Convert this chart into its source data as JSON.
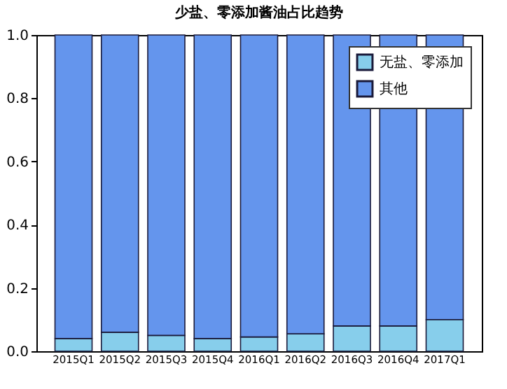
{
  "chart_data": {
    "type": "bar",
    "title": "少盐、零添加酱油占比趋势",
    "stacked": true,
    "categories": [
      "2015Q1",
      "2015Q2",
      "2015Q3",
      "2015Q4",
      "2016Q1",
      "2016Q2",
      "2016Q3",
      "2016Q4",
      "2017Q1"
    ],
    "series": [
      {
        "name": "无盐、零添加",
        "color": "#87ceeb",
        "values": [
          0.04,
          0.06,
          0.05,
          0.04,
          0.045,
          0.055,
          0.08,
          0.08,
          0.1
        ]
      },
      {
        "name": "其他",
        "color": "#6495ed",
        "values": [
          0.96,
          0.94,
          0.95,
          0.96,
          0.955,
          0.945,
          0.92,
          0.92,
          0.9
        ]
      }
    ],
    "ylim": [
      0,
      1
    ],
    "yticks": [
      {
        "value": 0,
        "label": "0.0"
      },
      {
        "value": 0.2,
        "label": "0.2"
      },
      {
        "value": 0.4,
        "label": "0.4"
      },
      {
        "value": 0.6,
        "label": "0.6"
      },
      {
        "value": 0.8,
        "label": "0.8"
      },
      {
        "value": 1,
        "label": "1.0"
      }
    ],
    "grid": false,
    "legend": "top right"
  }
}
